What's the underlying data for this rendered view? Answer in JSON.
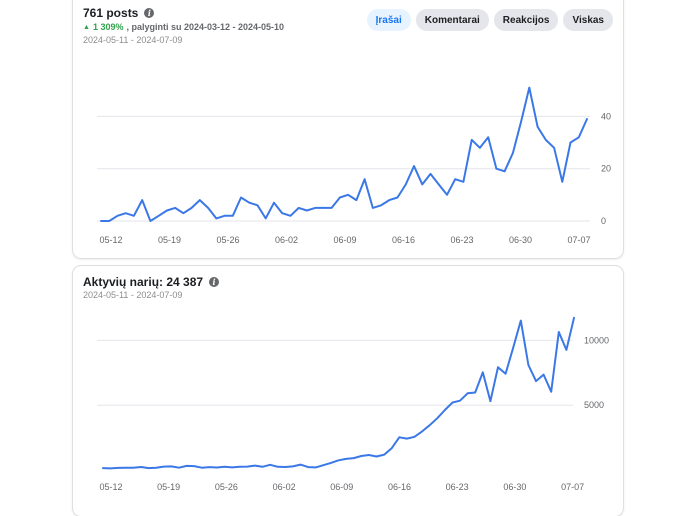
{
  "posts_card": {
    "title": "761 posts",
    "percent": "1 309%",
    "compare_text": ", palyginti su 2024-03-12 - 2024-05-10",
    "range": "2024-05-11 - 2024-07-09",
    "tabs": [
      {
        "label": "Įrašai",
        "active": true
      },
      {
        "label": "Komentarai",
        "active": false
      },
      {
        "label": "Reakcijos",
        "active": false
      },
      {
        "label": "Viskas",
        "active": false
      }
    ]
  },
  "members_card": {
    "title": "Aktyvių narių: 24 387",
    "range": "2024-05-11 - 2024-07-09"
  },
  "colors": {
    "line": "#3b78e7",
    "accent": "#1877f2",
    "up": "#31a24c"
  },
  "chart_data": [
    {
      "type": "line",
      "xlabel": "",
      "ylabel": "",
      "x_ticks": [
        "05-12",
        "05-19",
        "05-26",
        "06-02",
        "06-09",
        "06-16",
        "06-23",
        "06-30",
        "07-07"
      ],
      "y_ticks": [
        0,
        20,
        40
      ],
      "ylim": [
        0,
        52
      ],
      "grid": true,
      "series": [
        {
          "values": [
            0,
            0,
            2,
            3,
            2,
            8,
            0,
            2,
            4,
            5,
            3,
            5,
            8,
            5,
            1,
            2,
            2,
            9,
            7,
            6,
            1,
            7,
            3,
            2,
            5,
            4,
            5,
            5,
            5,
            9,
            10,
            8,
            16,
            5,
            6,
            8,
            9,
            14,
            21,
            14,
            18,
            14,
            10,
            16,
            15,
            31,
            28,
            32,
            20,
            19,
            26,
            38,
            51,
            36,
            31,
            28,
            15,
            30,
            32,
            39
          ]
        }
      ]
    },
    {
      "type": "line",
      "xlabel": "",
      "ylabel": "",
      "x_ticks": [
        "05-12",
        "05-19",
        "05-26",
        "06-02",
        "06-09",
        "06-16",
        "06-23",
        "06-30",
        "07-07"
      ],
      "y_ticks": [
        5000,
        10000
      ],
      "ylim": [
        0,
        12500
      ],
      "grid": true,
      "series": [
        {
          "values": [
            150,
            120,
            160,
            180,
            170,
            230,
            150,
            180,
            260,
            280,
            180,
            320,
            300,
            180,
            220,
            190,
            250,
            200,
            250,
            260,
            340,
            250,
            400,
            250,
            230,
            280,
            420,
            220,
            200,
            370,
            550,
            750,
            860,
            920,
            1080,
            1160,
            1040,
            1180,
            1680,
            2520,
            2420,
            2560,
            2980,
            3460,
            4000,
            4630,
            5210,
            5350,
            5920,
            5980,
            7540,
            5310,
            7930,
            7430,
            9440,
            11530,
            8100,
            6860,
            7360,
            6040,
            10650,
            9270,
            11740
          ]
        }
      ]
    }
  ]
}
